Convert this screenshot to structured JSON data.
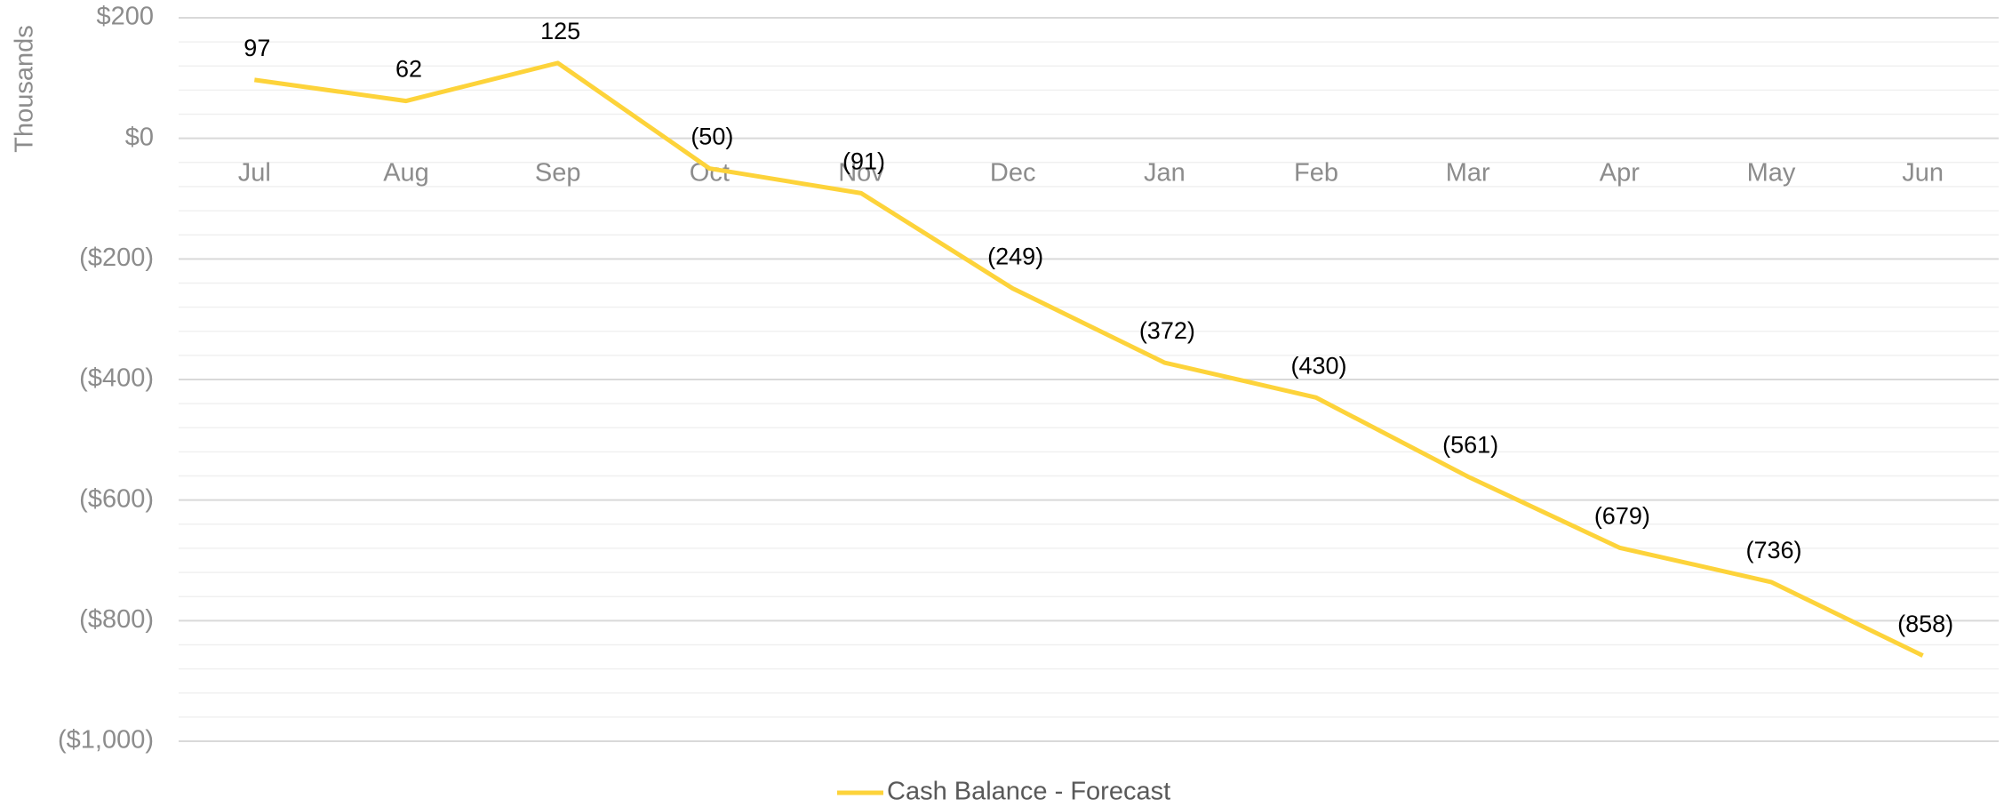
{
  "chart_data": {
    "type": "line",
    "y_axis_label": "Thousands",
    "categories": [
      "Jul",
      "Aug",
      "Sep",
      "Oct",
      "Nov",
      "Dec",
      "Jan",
      "Feb",
      "Mar",
      "Apr",
      "May",
      "Jun"
    ],
    "series": [
      {
        "name": "Cash Balance - Forecast",
        "color": "#fdd33a",
        "values": [
          97,
          62,
          125,
          -50,
          -91,
          -249,
          -372,
          -430,
          -561,
          -679,
          -736,
          -858
        ],
        "value_labels": [
          "97",
          "62",
          "125",
          "(50)",
          "(91)",
          "(249)",
          "(372)",
          "(430)",
          "(561)",
          "(679)",
          "(736)",
          "(858)"
        ]
      }
    ],
    "ylim": [
      -1000,
      200
    ],
    "yticks": [
      {
        "value": -1000,
        "label": "($1,000)"
      },
      {
        "value": -800,
        "label": "($800)"
      },
      {
        "value": -600,
        "label": "($600)"
      },
      {
        "value": -400,
        "label": "($400)"
      },
      {
        "value": -200,
        "label": "($200)"
      },
      {
        "value": 0,
        "label": "$0"
      },
      {
        "value": 200,
        "label": "$200"
      }
    ],
    "minor_yticks": [
      -960,
      -920,
      -880,
      -840,
      -760,
      -720,
      -680,
      -640,
      -560,
      -520,
      -480,
      -440,
      -360,
      -320,
      -280,
      -240,
      -160,
      -120,
      -80,
      -40,
      40,
      80,
      120,
      160
    ],
    "grid": true,
    "legend": "bottom"
  }
}
